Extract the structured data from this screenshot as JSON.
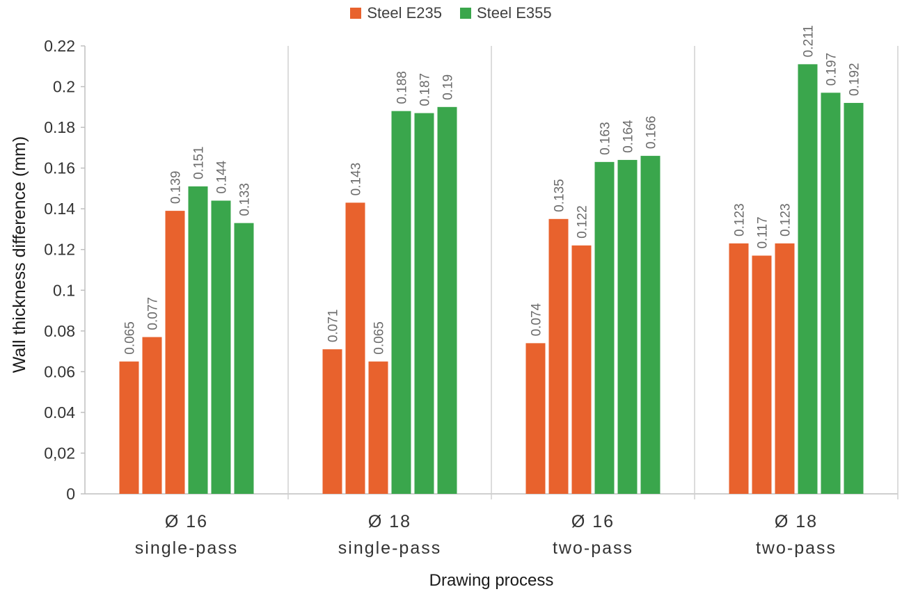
{
  "chart_data": {
    "type": "bar",
    "xlabel": "Drawing process",
    "ylabel": "Wall thickness difference (mm)",
    "ylim": [
      0,
      0.22
    ],
    "yticks": [
      {
        "value": 0,
        "label": "0"
      },
      {
        "value": 0.02,
        "label": "0,02"
      },
      {
        "value": 0.04,
        "label": "0.04"
      },
      {
        "value": 0.06,
        "label": "0.06"
      },
      {
        "value": 0.08,
        "label": "0.08"
      },
      {
        "value": 0.1,
        "label": "0.1"
      },
      {
        "value": 0.12,
        "label": "0.12"
      },
      {
        "value": 0.14,
        "label": "0.14"
      },
      {
        "value": 0.16,
        "label": "0.16"
      },
      {
        "value": 0.18,
        "label": "0.18"
      },
      {
        "value": 0.2,
        "label": "0.2"
      },
      {
        "value": 0.22,
        "label": "0.22"
      }
    ],
    "legend_position": "top-center",
    "grid": false,
    "series": [
      {
        "name": "Steel E235",
        "color": "#E8622D"
      },
      {
        "name": "Steel E355",
        "color": "#3AA64C"
      }
    ],
    "groups": [
      {
        "label_line1": "Ø 16",
        "label_line2": "single-pass",
        "bars": [
          {
            "series": 0,
            "value": 0.065,
            "label": "0.065"
          },
          {
            "series": 0,
            "value": 0.077,
            "label": "0.077"
          },
          {
            "series": 0,
            "value": 0.139,
            "label": "0.139"
          },
          {
            "series": 1,
            "value": 0.151,
            "label": "0.151"
          },
          {
            "series": 1,
            "value": 0.144,
            "label": "0.144"
          },
          {
            "series": 1,
            "value": 0.133,
            "label": "0.133"
          }
        ]
      },
      {
        "label_line1": "Ø 18",
        "label_line2": "single-pass",
        "bars": [
          {
            "series": 0,
            "value": 0.071,
            "label": "0.071"
          },
          {
            "series": 0,
            "value": 0.143,
            "label": "0.143"
          },
          {
            "series": 0,
            "value": 0.065,
            "label": "0.065"
          },
          {
            "series": 1,
            "value": 0.188,
            "label": "0.188"
          },
          {
            "series": 1,
            "value": 0.187,
            "label": "0.187"
          },
          {
            "series": 1,
            "value": 0.19,
            "label": "0.19"
          }
        ]
      },
      {
        "label_line1": "Ø 16",
        "label_line2": "two-pass",
        "bars": [
          {
            "series": 0,
            "value": 0.074,
            "label": "0.074"
          },
          {
            "series": 0,
            "value": 0.135,
            "label": "0.135"
          },
          {
            "series": 0,
            "value": 0.122,
            "label": "0.122"
          },
          {
            "series": 1,
            "value": 0.163,
            "label": "0.163"
          },
          {
            "series": 1,
            "value": 0.164,
            "label": "0.164"
          },
          {
            "series": 1,
            "value": 0.166,
            "label": "0.166"
          }
        ]
      },
      {
        "label_line1": "Ø 18",
        "label_line2": "two-pass",
        "bars": [
          {
            "series": 0,
            "value": 0.123,
            "label": "0.123"
          },
          {
            "series": 0,
            "value": 0.117,
            "label": "0.117"
          },
          {
            "series": 0,
            "value": 0.123,
            "label": "0.123"
          },
          {
            "series": 1,
            "value": 0.211,
            "label": "0.211"
          },
          {
            "series": 1,
            "value": 0.197,
            "label": "0.197"
          },
          {
            "series": 1,
            "value": 0.192,
            "label": "0.192"
          }
        ]
      }
    ]
  }
}
